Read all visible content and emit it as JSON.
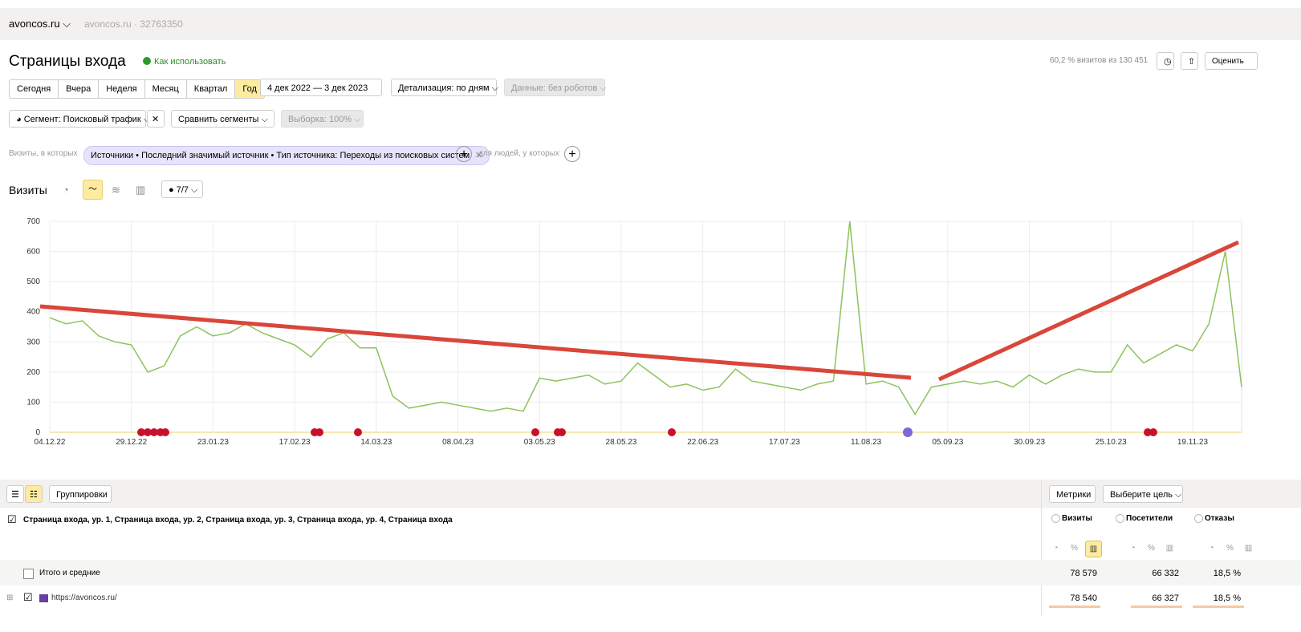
{
  "header": {
    "site": "avoncos.ru",
    "counter": "avoncos.ru · 32763350"
  },
  "page": {
    "title": "Страницы входа",
    "help": "Как использовать",
    "summary": "60,2 % визитов из 130 451",
    "rate": "Оценить"
  },
  "periods": [
    "Сегодня",
    "Вчера",
    "Неделя",
    "Месяц",
    "Квартал",
    "Год"
  ],
  "active_period": "Год",
  "date_range": "4 дек 2022 — 3 дек 2023",
  "detail": "Детализация: по дням",
  "data_filter": "Данные: без роботов",
  "segment": "Сегмент: Поисковый трафик",
  "compare": "Сравнить сегменты",
  "sample": "Выборка: 100%",
  "filter": {
    "prefix": "Визиты, в которых",
    "condition": "Источники • Последний значимый источник • Тип источника: Переходы из поисковых систем",
    "suffix": "для людей, у которых"
  },
  "chart_header": {
    "title": "Визиты",
    "series_count": "7/7"
  },
  "chart_data": {
    "type": "line",
    "color": "#8cc35c",
    "ylim": [
      0,
      700
    ],
    "yticks": [
      0,
      100,
      200,
      300,
      400,
      500,
      600,
      700
    ],
    "grid": true,
    "categories": [
      "04.12.22",
      null,
      null,
      null,
      null,
      "29.12.22",
      null,
      null,
      null,
      null,
      "23.01.23",
      null,
      null,
      null,
      null,
      "17.02.23",
      null,
      null,
      null,
      null,
      "14.03.23",
      null,
      null,
      null,
      null,
      "08.04.23",
      null,
      null,
      null,
      null,
      "03.05.23",
      null,
      null,
      null,
      null,
      "28.05.23",
      null,
      null,
      null,
      null,
      "22.06.23",
      null,
      null,
      null,
      null,
      "17.07.23",
      null,
      null,
      null,
      null,
      "11.08.23",
      null,
      null,
      null,
      null,
      "05.09.23",
      null,
      null,
      null,
      null,
      "30.09.23",
      null,
      null,
      null,
      null,
      "25.10.23",
      null,
      null,
      null,
      null,
      "19.11.23",
      null,
      null,
      null
    ],
    "values": [
      380,
      360,
      370,
      320,
      300,
      290,
      200,
      220,
      320,
      350,
      320,
      330,
      360,
      330,
      310,
      290,
      250,
      310,
      330,
      280,
      280,
      120,
      80,
      90,
      100,
      90,
      80,
      70,
      80,
      70,
      180,
      170,
      180,
      190,
      160,
      170,
      230,
      190,
      150,
      160,
      140,
      150,
      210,
      170,
      160,
      150,
      140,
      160,
      170,
      700,
      160,
      170,
      150,
      60,
      150,
      160,
      170,
      160,
      170,
      150,
      190,
      160,
      190,
      210,
      200,
      200,
      290,
      230,
      260,
      290,
      270,
      360,
      600,
      150
    ]
  },
  "table": {
    "groupings": "Группировки",
    "metrics": "Метрики",
    "goal": "Выберите цель",
    "dimension": "Страница входа, ур. 1, Страница входа, ур. 2, Страница входа, ур. 3, Страница входа, ур. 4, Страница входа",
    "columns": [
      "Визиты",
      "Посетители",
      "Отказы"
    ],
    "rows": [
      [
        "Итого и средние",
        "78 579",
        "66 332",
        "18,5 %"
      ],
      [
        "https://avoncos.ru/",
        "78 540",
        "66 327",
        "18,5 %"
      ]
    ]
  }
}
